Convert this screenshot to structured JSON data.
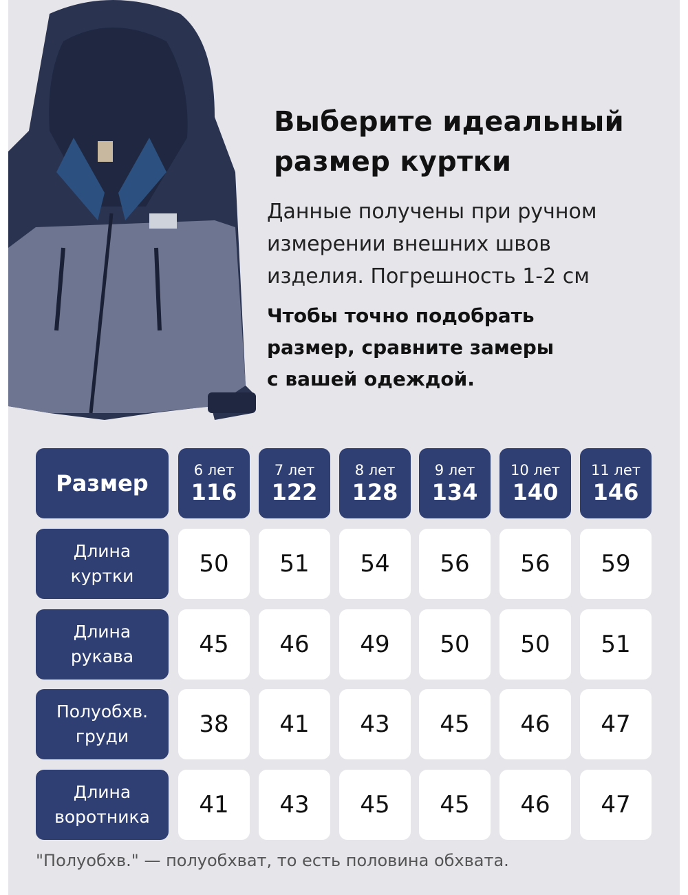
{
  "heading": {
    "line1": "Выберите идеальный",
    "line2": "размер куртки"
  },
  "description": {
    "line1": "Данные получены при ручном",
    "line2": "измерении внешних швов",
    "line3": "изделия. Погрешность 1-2 см"
  },
  "advice": {
    "line1": "Чтобы точно подобрать",
    "line2": "размер, сравните замеры",
    "line3": "с вашей одеждой."
  },
  "table": {
    "header_label": "Размер",
    "columns": [
      {
        "age": "6 лет",
        "size": "116"
      },
      {
        "age": "7 лет",
        "size": "122"
      },
      {
        "age": "8 лет",
        "size": "128"
      },
      {
        "age": "9 лет",
        "size": "134"
      },
      {
        "age": "10 лет",
        "size": "140"
      },
      {
        "age": "11 лет",
        "size": "146"
      }
    ],
    "rows": [
      {
        "label1": "Длина",
        "label2": "куртки",
        "values": [
          "50",
          "51",
          "54",
          "56",
          "56",
          "59"
        ]
      },
      {
        "label1": "Длина",
        "label2": "рукава",
        "values": [
          "45",
          "46",
          "49",
          "50",
          "50",
          "51"
        ]
      },
      {
        "label1": "Полуобхв.",
        "label2": "груди",
        "values": [
          "38",
          "41",
          "43",
          "45",
          "46",
          "47"
        ]
      },
      {
        "label1": "Длина",
        "label2": "воротника",
        "values": [
          "41",
          "43",
          "45",
          "45",
          "46",
          "47"
        ]
      }
    ]
  },
  "footnote": "\"Полуобхв.\" — полуобхват, то есть половина обхвата.",
  "colors": {
    "navy": "#2f3f73",
    "background": "#e6e5ea"
  }
}
